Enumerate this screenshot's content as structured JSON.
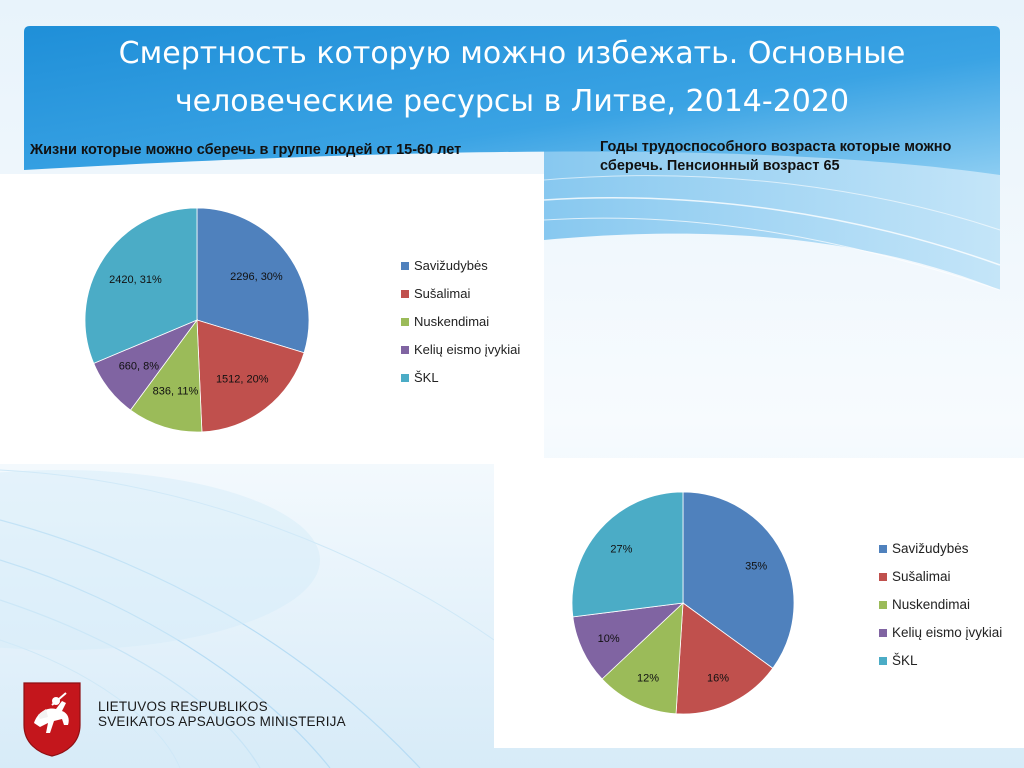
{
  "slide": {
    "title": "Смертность которую можно избежать. Основные человеческие ресурсы в Литве, 2014-2020",
    "subtitle_left": "Жизни которые можно сберечь в группе людей от 15-60 лет",
    "subtitle_right": "Годы трудоспособного возраста которые можно сберечь. Пенсионный возраст 65",
    "ministry_line1": "LIETUVOS RESPUBLIKOS",
    "ministry_line2": "SVEIKATOS APSAUGOS MINISTERIJA",
    "colors": {
      "title_bar": "#1b8fd7",
      "accent": "#4fa6e0"
    }
  },
  "chart_data": [
    {
      "type": "pie",
      "categories": [
        "Savižudybės",
        "Sušalimai",
        "Nuskendimai",
        "Kelių eismo įvykiai",
        "ŠKL"
      ],
      "values": [
        2296,
        1512,
        836,
        660,
        2420
      ],
      "percents": [
        30,
        20,
        11,
        8,
        31
      ],
      "labels": [
        "2296, 30%",
        "1512, 20%",
        "836, 11%",
        "660, 8%",
        "2420, 31%"
      ],
      "colors": [
        "#4f81bd",
        "#c0504d",
        "#9bbb59",
        "#8064a2",
        "#4bacc6"
      ],
      "legend_position": "right"
    },
    {
      "type": "pie",
      "categories": [
        "Savižudybės",
        "Sušalimai",
        "Nuskendimai",
        "Kelių eismo įvykiai",
        "ŠKL"
      ],
      "values": [
        35,
        16,
        12,
        10,
        27
      ],
      "labels": [
        "35%",
        "16%",
        "12%",
        "10%",
        "27%"
      ],
      "colors": [
        "#4f81bd",
        "#c0504d",
        "#9bbb59",
        "#8064a2",
        "#4bacc6"
      ],
      "legend_position": "right"
    }
  ]
}
